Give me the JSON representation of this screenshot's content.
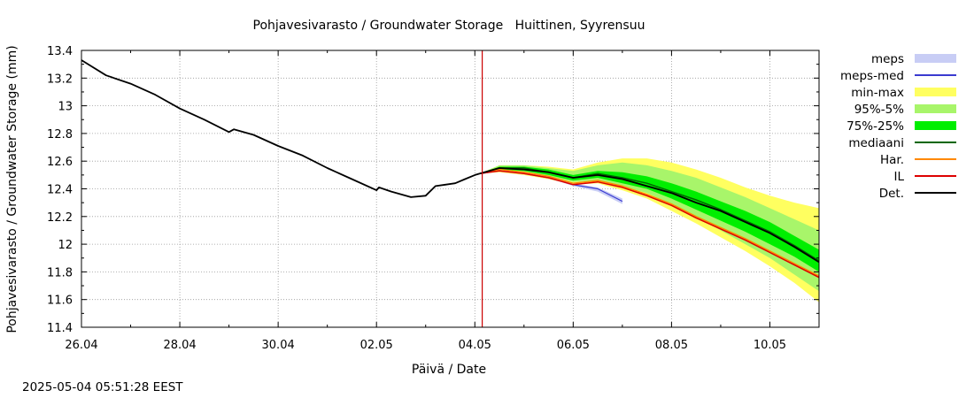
{
  "chart_data": {
    "type": "line",
    "title": "Pohjavesivarasto / Groundwater Storage   Huittinen, Syyrensuu",
    "xlabel": "Päivä / Date",
    "ylabel": "Pohjavesivarasto / Groundwater Storage (mm)",
    "x_range_days": [
      0,
      15
    ],
    "x_ticks": [
      {
        "day": 0,
        "label": "26.04"
      },
      {
        "day": 2,
        "label": "28.04"
      },
      {
        "day": 4,
        "label": "30.04"
      },
      {
        "day": 6,
        "label": "02.05"
      },
      {
        "day": 8,
        "label": "04.05"
      },
      {
        "day": 10,
        "label": "06.05"
      },
      {
        "day": 12,
        "label": "08.05"
      },
      {
        "day": 14,
        "label": "10.05"
      }
    ],
    "ylim": [
      11.4,
      13.4
    ],
    "y_ticks": [
      "11.4",
      "11.6",
      "11.8",
      "12",
      "12.2",
      "12.4",
      "12.6",
      "12.8",
      "13",
      "13.2",
      "13.4"
    ],
    "grid": true,
    "legend_position": "right",
    "current_day_marker": 8.15,
    "colors": {
      "meps": "#c8cdf5",
      "meps_med": "#3a3ad0",
      "min_max": "#ffff60",
      "p95_5": "#a8f56a",
      "p75_25": "#00ee00",
      "mediaani": "#006600",
      "har": "#ff8800",
      "il": "#dd0000",
      "det": "#000000",
      "marker": "#cc0000"
    },
    "legend": [
      {
        "label": "meps",
        "key": "meps",
        "kind": "band"
      },
      {
        "label": "meps-med",
        "key": "meps_med",
        "kind": "line"
      },
      {
        "label": "min-max",
        "key": "min_max",
        "kind": "band"
      },
      {
        "label": "95%-5%",
        "key": "p95_5",
        "kind": "band"
      },
      {
        "label": "75%-25%",
        "key": "p75_25",
        "kind": "band"
      },
      {
        "label": "mediaani",
        "key": "mediaani",
        "kind": "line"
      },
      {
        "label": "Har.",
        "key": "har",
        "kind": "line"
      },
      {
        "label": "IL",
        "key": "il",
        "kind": "line"
      },
      {
        "label": "Det.",
        "key": "det",
        "kind": "line"
      }
    ],
    "observed": {
      "x": [
        0,
        0.5,
        1,
        1.5,
        2,
        2.5,
        3,
        3.1,
        3.5,
        4,
        4.5,
        5,
        5.5,
        6,
        6.05,
        6.3,
        6.7,
        7,
        7.2,
        7.4,
        7.6,
        7.8,
        8,
        8.1
      ],
      "y": [
        13.33,
        13.22,
        13.16,
        13.08,
        12.98,
        12.9,
        12.81,
        12.83,
        12.79,
        12.71,
        12.64,
        12.55,
        12.47,
        12.39,
        12.41,
        12.38,
        12.34,
        12.35,
        12.42,
        12.43,
        12.44,
        12.47,
        12.5,
        12.51
      ]
    },
    "forecast": {
      "x": [
        8.1,
        8.5,
        9,
        9.5,
        10,
        10.5,
        11,
        11.5,
        12,
        12.5,
        13,
        13.5,
        14,
        14.5,
        15
      ],
      "min": [
        12.51,
        12.52,
        12.5,
        12.47,
        12.43,
        12.44,
        12.39,
        12.33,
        12.24,
        12.15,
        12.05,
        11.95,
        11.84,
        11.72,
        11.58
      ],
      "max": [
        12.51,
        12.57,
        12.57,
        12.56,
        12.54,
        12.59,
        12.62,
        12.62,
        12.59,
        12.54,
        12.48,
        12.41,
        12.35,
        12.3,
        12.26
      ],
      "p5": [
        12.51,
        12.53,
        12.51,
        12.49,
        12.45,
        12.46,
        12.42,
        12.37,
        12.29,
        12.2,
        12.1,
        12.0,
        11.9,
        11.78,
        11.66
      ],
      "p95": [
        12.51,
        12.57,
        12.57,
        12.55,
        12.53,
        12.57,
        12.59,
        12.57,
        12.53,
        12.48,
        12.41,
        12.34,
        12.26,
        12.18,
        12.1
      ],
      "p25": [
        12.51,
        12.54,
        12.53,
        12.5,
        12.46,
        12.48,
        12.44,
        12.4,
        12.33,
        12.25,
        12.17,
        12.09,
        12.0,
        11.91,
        11.8
      ],
      "p75": [
        12.51,
        12.56,
        12.56,
        12.54,
        12.5,
        12.53,
        12.52,
        12.49,
        12.44,
        12.38,
        12.31,
        12.24,
        12.16,
        12.06,
        11.96
      ],
      "mediaani": [
        12.51,
        12.55,
        12.55,
        12.52,
        12.48,
        12.51,
        12.48,
        12.44,
        12.38,
        12.32,
        12.25,
        12.17,
        12.09,
        11.99,
        11.88
      ],
      "det": [
        12.51,
        12.55,
        12.54,
        12.52,
        12.48,
        12.5,
        12.47,
        12.42,
        12.37,
        12.3,
        12.24,
        12.16,
        12.08,
        11.98,
        11.87
      ],
      "il": [
        12.51,
        12.53,
        12.51,
        12.48,
        12.43,
        12.45,
        12.41,
        12.35,
        12.28,
        12.19,
        12.11,
        12.03,
        11.94,
        11.85,
        11.76
      ],
      "har": [
        12.51,
        12.54,
        12.52,
        12.49,
        12.44,
        12.46,
        12.42,
        12.36,
        12.29,
        12.2,
        12.12,
        12.04,
        11.95,
        11.86,
        11.77
      ]
    },
    "meps": {
      "x": [
        8.1,
        8.5,
        9,
        9.5,
        10,
        10.5,
        11
      ],
      "lower": [
        12.51,
        12.53,
        12.51,
        12.48,
        12.42,
        12.38,
        12.29
      ],
      "upper": [
        12.51,
        12.54,
        12.52,
        12.49,
        12.44,
        12.41,
        12.33
      ],
      "median": [
        12.51,
        12.53,
        12.51,
        12.48,
        12.43,
        12.4,
        12.31
      ]
    }
  },
  "footer": {
    "timestamp": "2025-05-04 05:51:28 EEST"
  }
}
